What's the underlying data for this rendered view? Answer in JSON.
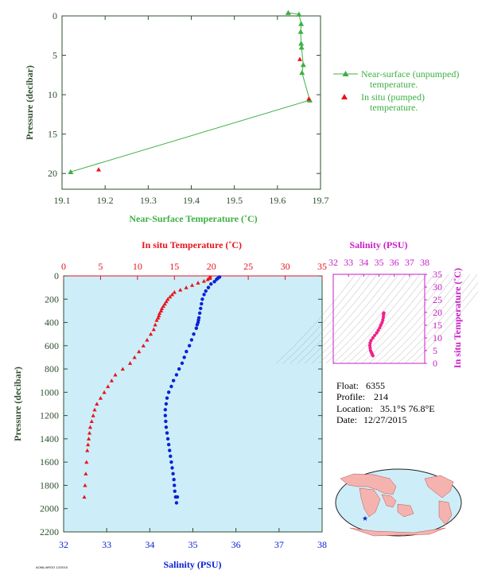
{
  "colors": {
    "axis_dark": "#2f4f2f",
    "green": "#3cb043",
    "red": "#e8141c",
    "blue": "#0b21d6",
    "magenta": "#c81ec8",
    "pink": "#f21f8c",
    "panel_bg": "#cdeef8",
    "land": "#f5b3b0",
    "ocean": "#cdeef8"
  },
  "info": {
    "float_label": "Float:",
    "float_value": "6355",
    "profile_label": "Profile:",
    "profile_value": "214",
    "location_label": "Location:",
    "location_value": "35.1°S  76.8°E",
    "date_label": "Date:",
    "date_value": "12/27/2015"
  },
  "footer_code": "AOML/ARGO 12/2015",
  "chart_data": [
    {
      "type": "line",
      "id": "near-surface",
      "xlabel": "Near-Surface Temperature (˚C)",
      "ylabel": "Pressure (decibar)",
      "xlim": [
        19.1,
        19.7
      ],
      "ylim": [
        22,
        0
      ],
      "xticks": [
        19.1,
        19.2,
        19.3,
        19.4,
        19.5,
        19.6,
        19.7
      ],
      "yticks": [
        0,
        5,
        10,
        15,
        20
      ],
      "legend": {
        "placement": "right",
        "entries": [
          "Near-surface (unpumped) temperature.",
          "In situ (pumped) temperature."
        ]
      },
      "series": [
        {
          "name": "Near-surface (unpumped) temperature.",
          "marker": "triangle",
          "x": [
            19.625,
            19.65,
            19.655,
            19.654,
            19.655,
            19.656,
            19.66,
            19.657,
            19.675,
            19.12
          ],
          "y": [
            -0.4,
            -0.2,
            1.0,
            2.0,
            3.5,
            4.0,
            6.2,
            7.2,
            10.7,
            19.8
          ]
        },
        {
          "name": "In situ (pumped) temperature.",
          "marker": "triangle",
          "x": [
            19.652,
            19.673,
            19.185
          ],
          "y": [
            5.5,
            10.5,
            19.5
          ]
        }
      ]
    },
    {
      "type": "scatter",
      "id": "profile",
      "xlabel": "Salinity (PSU)",
      "x2label": "In situ Temperature (˚C)",
      "ylabel": "Pressure (decibar)",
      "salinity_lim": [
        32,
        38
      ],
      "temperature_lim": [
        0,
        35
      ],
      "ylim": [
        2200,
        0
      ],
      "salinity_ticks": [
        32,
        33,
        34,
        35,
        36,
        37,
        38
      ],
      "temperature_ticks": [
        0,
        5,
        10,
        15,
        20,
        25,
        30,
        35
      ],
      "yticks": [
        0,
        200,
        400,
        600,
        800,
        1000,
        1200,
        1400,
        1600,
        1800,
        2000,
        2200
      ],
      "series": [
        {
          "name": "temperature",
          "variable": "temperature",
          "values": [
            19.8,
            19.7,
            19.5,
            19.0,
            18.2,
            17.4,
            16.6,
            15.8,
            15.0,
            14.7,
            14.4,
            14.1,
            13.9,
            13.7,
            13.5,
            13.3,
            13.2,
            13.0,
            12.9,
            12.8,
            12.6,
            12.4,
            12.2,
            11.8,
            11.3,
            10.8,
            10.2,
            9.6,
            9.0,
            8.0,
            7.0,
            6.5,
            6.0,
            5.5,
            5.0,
            4.5,
            4.2,
            4.0,
            3.8,
            3.6,
            3.5,
            3.4,
            3.3,
            3.2,
            3.1,
            3.0,
            2.9,
            2.8
          ],
          "pressure": [
            10,
            20,
            30,
            45,
            60,
            80,
            100,
            120,
            140,
            160,
            180,
            200,
            220,
            240,
            260,
            280,
            300,
            320,
            340,
            360,
            380,
            420,
            460,
            500,
            550,
            600,
            650,
            700,
            750,
            800,
            850,
            900,
            950,
            1000,
            1050,
            1100,
            1150,
            1200,
            1250,
            1300,
            1350,
            1400,
            1450,
            1500,
            1600,
            1700,
            1800,
            1900
          ]
        },
        {
          "name": "salinity",
          "variable": "salinity",
          "values": [
            35.62,
            35.58,
            35.55,
            35.5,
            35.42,
            35.36,
            35.3,
            35.26,
            35.22,
            35.2,
            35.18,
            35.16,
            35.14,
            35.13,
            35.12,
            35.1,
            35.08,
            35.02,
            34.97,
            34.92,
            34.85,
            34.8,
            34.75,
            34.68,
            34.62,
            34.55,
            34.5,
            34.44,
            34.4,
            34.38,
            34.36,
            34.36,
            34.37,
            34.38,
            34.4,
            34.42,
            34.44,
            34.46,
            34.48,
            34.5,
            34.52,
            34.54,
            34.56,
            34.57,
            34.58,
            34.6,
            34.62,
            34.64
          ],
          "pressure": [
            10,
            20,
            30,
            50,
            70,
            100,
            130,
            160,
            200,
            240,
            280,
            320,
            360,
            380,
            400,
            420,
            450,
            500,
            550,
            600,
            650,
            700,
            750,
            800,
            850,
            900,
            950,
            1000,
            1050,
            1100,
            1150,
            1200,
            1250,
            1300,
            1350,
            1400,
            1450,
            1500,
            1550,
            1600,
            1650,
            1700,
            1750,
            1800,
            1850,
            1900,
            1950,
            1900
          ]
        }
      ]
    },
    {
      "type": "line",
      "id": "ts-diagram",
      "title": "Salinity (PSU)",
      "ylabel": "In situ Temperature (˚C)",
      "xlim": [
        32,
        38
      ],
      "ylim": [
        0,
        35
      ],
      "xticks": [
        32,
        33,
        34,
        35,
        36,
        37,
        38
      ],
      "yticks": [
        0,
        5,
        10,
        15,
        20,
        25,
        30,
        35
      ],
      "series": [
        {
          "name": "T-S",
          "x": [
            34.6,
            34.55,
            34.5,
            34.45,
            34.42,
            34.4,
            34.42,
            34.48,
            34.6,
            34.72,
            34.85,
            34.95,
            35.05,
            35.12,
            35.2,
            35.25,
            35.28,
            35.3,
            35.3,
            35.32
          ],
          "y": [
            3,
            3.6,
            4.3,
            5,
            6,
            7,
            8,
            9,
            10,
            11,
            12,
            13,
            14,
            15,
            16,
            17,
            18,
            19,
            19.5,
            19.8
          ]
        }
      ]
    }
  ]
}
